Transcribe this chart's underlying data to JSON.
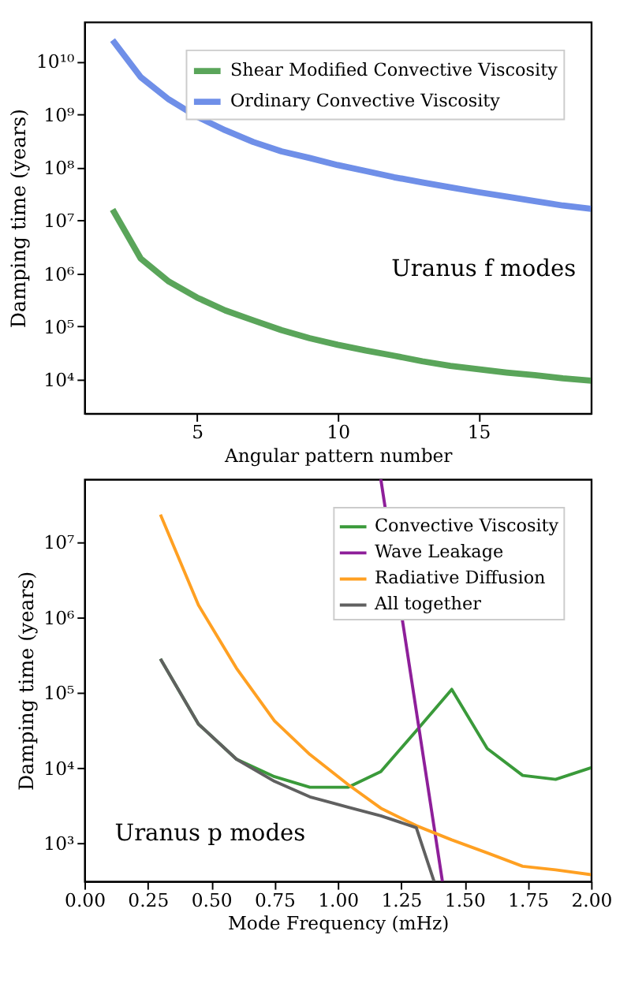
{
  "chart_data": [
    {
      "type": "line",
      "xlabel": "Angular pattern number",
      "ylabel": "Damping time (years)",
      "log": "y",
      "grid": false,
      "legend": "top right",
      "annotations": [
        "Uranus f modes"
      ],
      "xlim": [
        1,
        19
      ],
      "xticks": [
        5,
        10,
        15
      ],
      "ylim": [
        2300,
        55000000000
      ],
      "yticks": [
        {
          "value": 10000,
          "label": "10⁴"
        },
        {
          "value": 100000,
          "label": "10⁵"
        },
        {
          "value": 1000000,
          "label": "10⁶"
        },
        {
          "value": 10000000,
          "label": "10⁷"
        },
        {
          "value": 100000000,
          "label": "10⁸"
        },
        {
          "value": 1000000000,
          "label": "10⁹"
        },
        {
          "value": 10000000000,
          "label": "10¹⁰"
        }
      ],
      "x": [
        2,
        3,
        4,
        5,
        6,
        7,
        8,
        9,
        10,
        11,
        12,
        13,
        14,
        15,
        16,
        17,
        18,
        19
      ],
      "series": [
        {
          "name": "Shear Modified Convective Viscosity",
          "color": "#5aa55a",
          "values": [
            16000000,
            1900000,
            700000,
            350000,
            200000,
            130000,
            85000,
            60000,
            45000,
            35000,
            28000,
            22000,
            18000,
            15500,
            13500,
            12000,
            10500,
            9500
          ]
        },
        {
          "name": "Ordinary Convective Viscosity",
          "color": "#6f8fe8",
          "values": [
            25000000000,
            5000000000,
            1900000000,
            900000000,
            500000000,
            300000000,
            200000000,
            150000000,
            110000000,
            85000000,
            65000000,
            52000000,
            42000000,
            34000000,
            28000000,
            23000000,
            19000000,
            16500000
          ]
        }
      ]
    },
    {
      "type": "line",
      "xlabel": "Mode Frequency (mHz)",
      "ylabel": "Damping time (years)",
      "log": "y",
      "grid": false,
      "legend": "top right",
      "annotations": [
        "Uranus p modes"
      ],
      "xlim": [
        0,
        2
      ],
      "xticks": [
        {
          "value": 0,
          "label": "0.00"
        },
        {
          "value": 0.25,
          "label": "0.25"
        },
        {
          "value": 0.5,
          "label": "0.50"
        },
        {
          "value": 0.75,
          "label": "0.75"
        },
        {
          "value": 1,
          "label": "1.00"
        },
        {
          "value": 1.25,
          "label": "1.25"
        },
        {
          "value": 1.5,
          "label": "1.50"
        },
        {
          "value": 1.75,
          "label": "1.75"
        },
        {
          "value": 2,
          "label": "2.00"
        }
      ],
      "ylim": [
        310,
        68000000
      ],
      "yticks": [
        {
          "value": 1000,
          "label": "10³"
        },
        {
          "value": 10000,
          "label": "10⁴"
        },
        {
          "value": 100000,
          "label": "10⁵"
        },
        {
          "value": 1000000,
          "label": "10⁶"
        },
        {
          "value": 10000000,
          "label": "10⁷"
        }
      ],
      "series": [
        {
          "name": "Convective Viscosity",
          "color": "#3a9a3a",
          "x": [
            0.3,
            0.45,
            0.6,
            0.75,
            0.89,
            1.04,
            1.17,
            1.31,
            1.45,
            1.59,
            1.73,
            1.86,
            2.0
          ],
          "values": [
            280000,
            38000,
            13000,
            7600,
            5500,
            5500,
            8900,
            31000,
            110000,
            18000,
            7900,
            7000,
            10000
          ]
        },
        {
          "name": "Wave Leakage",
          "color": "#8e1f9a",
          "x": [
            1.17,
            1.413
          ],
          "values": [
            68000000,
            310
          ]
        },
        {
          "name": "Radiative Diffusion",
          "color": "#ffa022",
          "x": [
            0.3,
            0.45,
            0.6,
            0.75,
            0.89,
            1.04,
            1.17,
            1.31,
            1.45,
            1.59,
            1.73,
            1.86,
            2.0
          ],
          "values": [
            23000000,
            1450000,
            210000,
            42000,
            15000,
            6000,
            2900,
            1700,
            1100,
            740,
            490,
            440,
            380
          ]
        },
        {
          "name": "All together",
          "color": "#606060",
          "x": [
            0.3,
            0.45,
            0.6,
            0.75,
            0.89,
            1.04,
            1.17,
            1.31,
            1.38
          ],
          "values": [
            280000,
            38000,
            13000,
            6600,
            4100,
            3000,
            2300,
            1600,
            310
          ]
        }
      ]
    }
  ]
}
